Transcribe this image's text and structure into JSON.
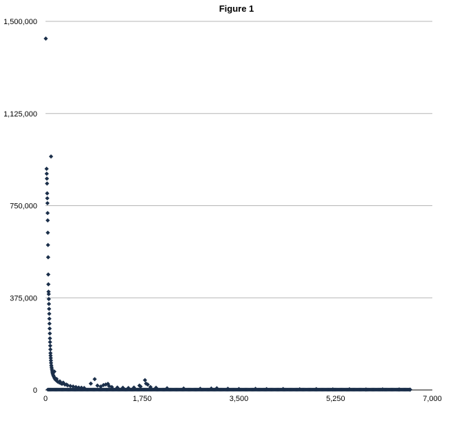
{
  "chart_data": {
    "type": "scatter",
    "title": "Figure 1",
    "xlabel": "",
    "ylabel": "",
    "xlim": [
      0,
      7000
    ],
    "ylim": [
      0,
      1500000
    ],
    "x_ticks": [
      0,
      1750,
      3500,
      5250,
      7000
    ],
    "x_tick_labels": [
      "0",
      "1,750",
      "3,500",
      "5,250",
      "7,000"
    ],
    "y_ticks": [
      0,
      375000,
      750000,
      1125000,
      1500000
    ],
    "y_tick_labels": [
      "0",
      "375,000",
      "750,000",
      "1,125,000",
      "1,500,000"
    ],
    "grid": "horizontal",
    "legend": "none",
    "marker_color": "#1b2f4a",
    "series": [
      {
        "points": [
          [
            5,
            1430000
          ],
          [
            100,
            950000
          ],
          [
            20,
            900000
          ],
          [
            22,
            880000
          ],
          [
            25,
            860000
          ],
          [
            28,
            840000
          ],
          [
            30,
            800000
          ],
          [
            32,
            780000
          ],
          [
            35,
            760000
          ],
          [
            38,
            720000
          ],
          [
            40,
            690000
          ],
          [
            42,
            640000
          ],
          [
            45,
            590000
          ],
          [
            48,
            540000
          ],
          [
            50,
            470000
          ],
          [
            52,
            430000
          ],
          [
            55,
            400000
          ],
          [
            58,
            390000
          ],
          [
            60,
            370000
          ],
          [
            62,
            350000
          ],
          [
            65,
            330000
          ],
          [
            68,
            310000
          ],
          [
            70,
            290000
          ],
          [
            72,
            270000
          ],
          [
            75,
            250000
          ],
          [
            78,
            230000
          ],
          [
            80,
            210000
          ],
          [
            82,
            195000
          ],
          [
            85,
            180000
          ],
          [
            88,
            165000
          ],
          [
            90,
            150000
          ],
          [
            92,
            140000
          ],
          [
            95,
            130000
          ],
          [
            98,
            120000
          ],
          [
            100,
            110000
          ],
          [
            105,
            100000
          ],
          [
            110,
            92000
          ],
          [
            115,
            85000
          ],
          [
            120,
            78000
          ],
          [
            125,
            72000
          ],
          [
            130,
            66000
          ],
          [
            140,
            60000
          ],
          [
            150,
            55000
          ],
          [
            160,
            50000
          ],
          [
            170,
            46000
          ],
          [
            180,
            42000
          ],
          [
            200,
            38000
          ],
          [
            220,
            34000
          ],
          [
            250,
            30000
          ],
          [
            280,
            27000
          ],
          [
            300,
            25000
          ],
          [
            350,
            22000
          ],
          [
            400,
            19000
          ],
          [
            450,
            16000
          ],
          [
            500,
            14000
          ],
          [
            550,
            12000
          ],
          [
            600,
            10000
          ],
          [
            650,
            9000
          ],
          [
            700,
            8000
          ],
          [
            160,
            75000
          ],
          [
            200,
            45000
          ],
          [
            260,
            35000
          ],
          [
            320,
            30000
          ],
          [
            380,
            22000
          ],
          [
            820,
            26000
          ],
          [
            890,
            44000
          ],
          [
            940,
            18000
          ],
          [
            1000,
            14000
          ],
          [
            1050,
            20000
          ],
          [
            1090,
            22000
          ],
          [
            1130,
            25000
          ],
          [
            1150,
            16000
          ],
          [
            1200,
            12000
          ],
          [
            1300,
            10000
          ],
          [
            1400,
            9000
          ],
          [
            1500,
            8000
          ],
          [
            1600,
            10000
          ],
          [
            1700,
            18000
          ],
          [
            1720,
            14000
          ],
          [
            1800,
            40000
          ],
          [
            1820,
            26000
          ],
          [
            1850,
            22000
          ],
          [
            1900,
            12000
          ],
          [
            2000,
            9000
          ],
          [
            2200,
            7000
          ],
          [
            2500,
            6000
          ],
          [
            2800,
            5000
          ],
          [
            3000,
            6000
          ],
          [
            3100,
            7000
          ],
          [
            3300,
            5000
          ],
          [
            3500,
            4000
          ],
          [
            3800,
            4500
          ],
          [
            4000,
            3500
          ],
          [
            4300,
            4000
          ],
          [
            4600,
            3000
          ],
          [
            4900,
            3500
          ],
          [
            5200,
            2500
          ],
          [
            5500,
            3000
          ],
          [
            5800,
            2000
          ],
          [
            6100,
            2500
          ],
          [
            6400,
            2000
          ],
          [
            6600,
            1500
          ]
        ]
      }
    ]
  }
}
